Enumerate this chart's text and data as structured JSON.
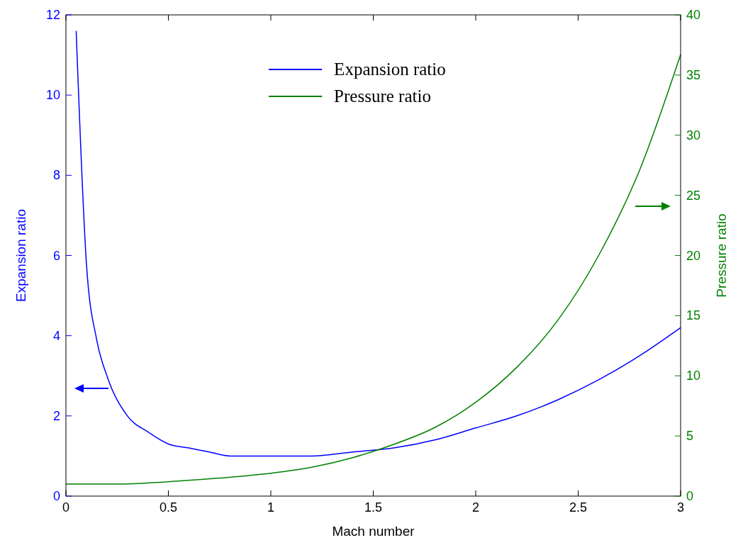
{
  "chart_data": {
    "type": "line",
    "xlabel": "Mach number",
    "ylabel": "Expansion ratio",
    "y2label": "Pressure ratio",
    "xlim": [
      0,
      3
    ],
    "xticks": [
      0,
      0.5,
      1,
      1.5,
      2,
      2.5,
      3
    ],
    "ylim": [
      0,
      12
    ],
    "yticks": [
      0,
      2,
      4,
      6,
      8,
      10,
      12
    ],
    "y2lim": [
      0,
      40
    ],
    "y2ticks": [
      0,
      5,
      10,
      15,
      20,
      25,
      30,
      35,
      40
    ],
    "legend": "top",
    "grid": false,
    "marker": "none",
    "line_style": "solid",
    "series": [
      {
        "name": "Expansion ratio",
        "color": "#0000ff",
        "x": [
          0.05,
          0.1,
          0.15,
          0.2,
          0.3,
          0.4,
          0.5,
          0.6,
          0.7,
          0.8,
          0.9,
          1,
          1.2,
          1.4,
          1.6,
          1.8,
          2,
          2.2,
          2.4,
          2.6,
          2.8,
          3
        ],
        "values": [
          11.6,
          5.8,
          3.9,
          3,
          2,
          1.6,
          1.3,
          1.2,
          1.1,
          1,
          1,
          1,
          1,
          1.1,
          1.2,
          1.4,
          1.7,
          2,
          2.4,
          2.9,
          3.5,
          4.2
        ]
      },
      {
        "name": "Pressure ratio",
        "color": "#008000",
        "axis": "y2",
        "x": [
          0,
          0.25,
          0.5,
          0.75,
          1,
          1.2,
          1.4,
          1.6,
          1.8,
          2,
          2.2,
          2.4,
          2.6,
          2.8,
          3
        ],
        "values": [
          1,
          1,
          1.2,
          1.5,
          1.9,
          2.4,
          3.2,
          4.3,
          5.7,
          7.8,
          10.7,
          14.6,
          20,
          27.1,
          36.7
        ]
      }
    ]
  }
}
